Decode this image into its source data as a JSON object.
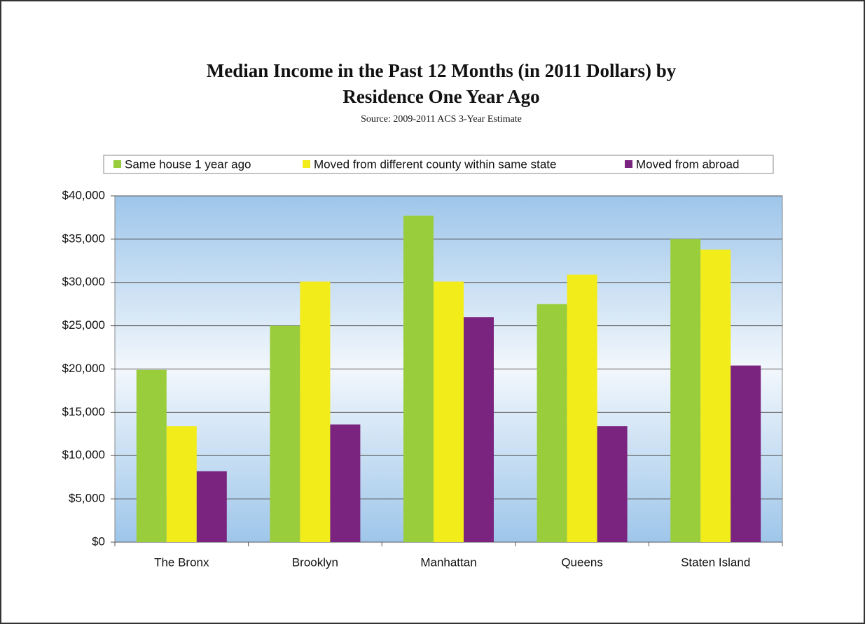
{
  "chart_data": {
    "type": "bar",
    "title": "Median Income in the Past 12 Months (in 2011 Dollars) by",
    "title_line2": "Residence One Year Ago",
    "subtitle": "Source: 2009-2011 ACS 3-Year Estimate",
    "categories": [
      "The Bronx",
      "Brooklyn",
      "Manhattan",
      "Queens",
      "Staten Island"
    ],
    "series": [
      {
        "name": "Same house 1 year ago",
        "color": "#9acd3c",
        "values": [
          19900,
          25000,
          37700,
          27500,
          35000
        ]
      },
      {
        "name": "Moved from different county within same state",
        "color": "#f2ec1a",
        "values": [
          13400,
          30100,
          30100,
          30900,
          33800
        ]
      },
      {
        "name": "Moved from abroad",
        "color": "#7a2480",
        "values": [
          8200,
          13600,
          26000,
          13400,
          20400
        ]
      }
    ],
    "ylim": [
      0,
      40000
    ],
    "yticks": [
      {
        "value": 0,
        "label": "$0"
      },
      {
        "value": 5000,
        "label": "$5,000"
      },
      {
        "value": 10000,
        "label": "$10,000"
      },
      {
        "value": 15000,
        "label": "$15,000"
      },
      {
        "value": 20000,
        "label": "$20,000"
      },
      {
        "value": 25000,
        "label": "$25,000"
      },
      {
        "value": 30000,
        "label": "$30,000"
      },
      {
        "value": 35000,
        "label": "$35,000"
      },
      {
        "value": 40000,
        "label": "$40,000"
      }
    ],
    "grid": true,
    "legend": "top"
  }
}
